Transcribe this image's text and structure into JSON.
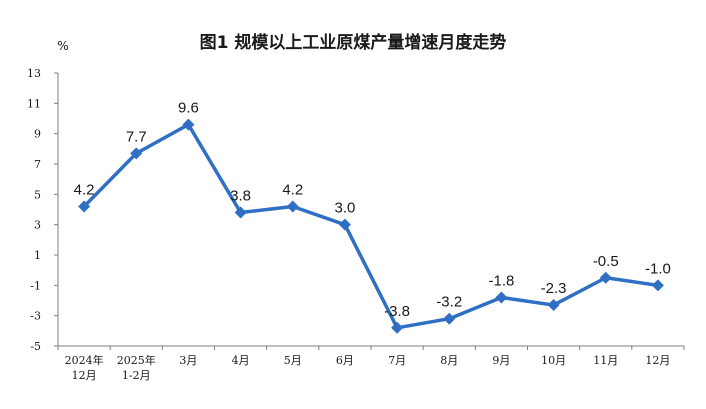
{
  "chart_data": {
    "type": "line",
    "title": "图1  规模以上工业原煤产量增速月度走势",
    "unit": "%",
    "categories": [
      [
        "2024年",
        "12月"
      ],
      [
        "2025年",
        "1-2月"
      ],
      [
        "3月"
      ],
      [
        "4月"
      ],
      [
        "5月"
      ],
      [
        "6月"
      ],
      [
        "7月"
      ],
      [
        "8月"
      ],
      [
        "9月"
      ],
      [
        "10月"
      ],
      [
        "11月"
      ],
      [
        "12月"
      ]
    ],
    "values": [
      4.2,
      7.7,
      9.6,
      3.8,
      4.2,
      3.0,
      -3.8,
      -3.2,
      -1.8,
      -2.3,
      -0.5,
      -1.0
    ],
    "data_labels": [
      "4.2",
      "7.7",
      "9.6",
      "3.8",
      "4.2",
      "3.0",
      "-3.8",
      "-3.2",
      "-1.8",
      "-2.3",
      "-0.5",
      "-1.0"
    ],
    "ylim": [
      -5,
      13
    ],
    "yticks": [
      13,
      11,
      9,
      7,
      5,
      3,
      1,
      -1,
      -3,
      -5
    ],
    "line_color": "#2f6fc4",
    "grid": false
  }
}
